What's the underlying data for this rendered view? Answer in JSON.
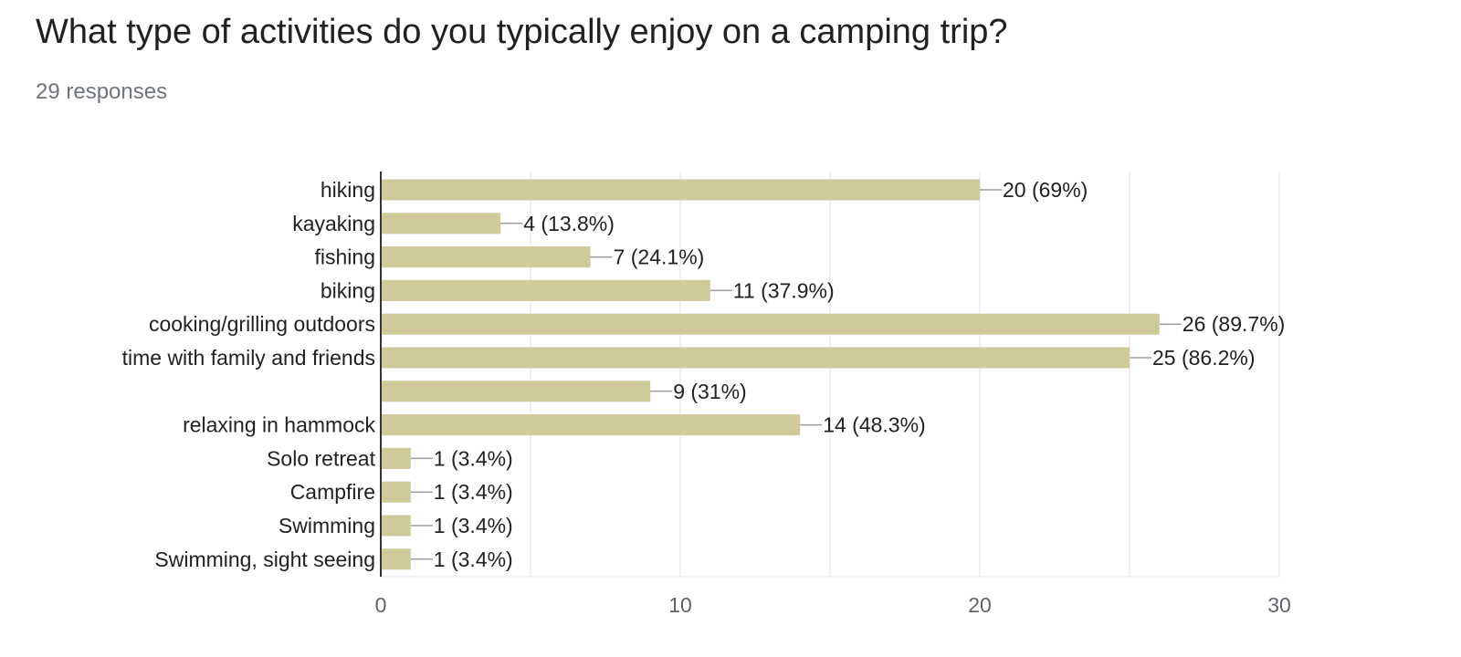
{
  "question": {
    "title": "What type of activities do you typically enjoy on a camping trip?",
    "responses": "29 responses"
  },
  "colors": {
    "bar": "#d0c99a",
    "label": "#202124",
    "axis_text": "#5f6368",
    "grid": "#ebebeb",
    "axis_line": "#333333",
    "leader": "#9e9e9e"
  },
  "chart_data": {
    "type": "bar",
    "orientation": "horizontal",
    "categories": [
      "hiking",
      "kayaking",
      "fishing",
      "biking",
      "cooking/grilling outdoors",
      "time with family and friends",
      "",
      "relaxing in hammock",
      "Solo retreat",
      "Campfire",
      "Swimming",
      "Swimming, sight seeing"
    ],
    "values": [
      20,
      4,
      7,
      11,
      26,
      25,
      9,
      14,
      1,
      1,
      1,
      1
    ],
    "data_labels": [
      "20 (69%)",
      "4 (13.8%)",
      "7 (24.1%)",
      "11 (37.9%)",
      "26 (89.7%)",
      "25 (86.2%)",
      "9 (31%)",
      "14 (48.3%)",
      "1 (3.4%)",
      "1 (3.4%)",
      "1 (3.4%)",
      "1 (3.4%)"
    ],
    "xlim": [
      0,
      30
    ],
    "xticks": [
      0,
      10,
      20,
      30
    ],
    "minor_grid": [
      5,
      15,
      25
    ],
    "grid": true
  }
}
